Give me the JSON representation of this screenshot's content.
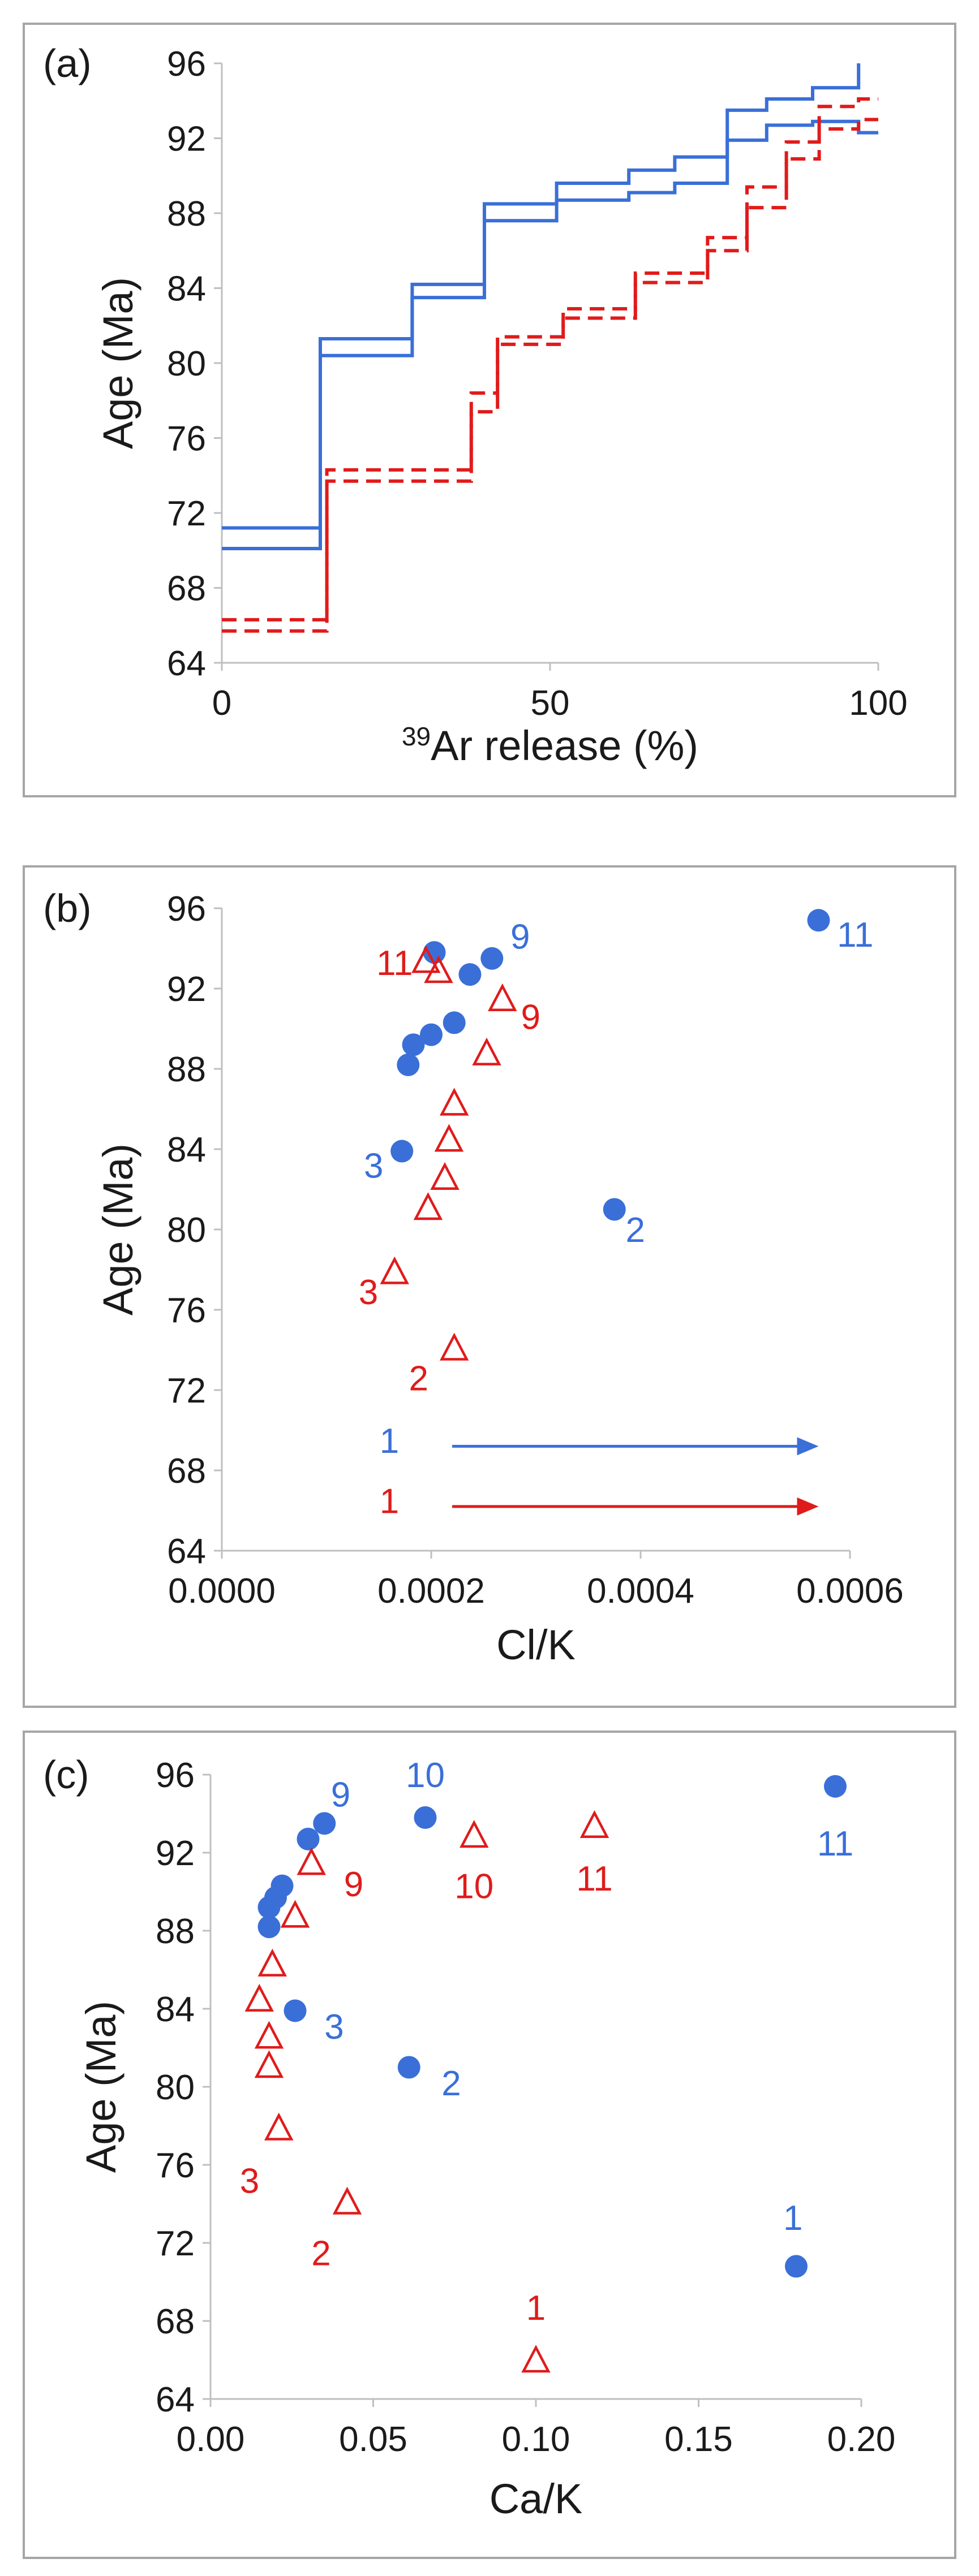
{
  "colors": {
    "blue": "#3a6fd8",
    "red": "#e01b1b",
    "axis": "#bfbfbf",
    "text": "#1a1a1a"
  },
  "chart_data": [
    {
      "type": "line",
      "panel_label": "(a)",
      "title": "",
      "xlabel": "39Ar release (%)",
      "xlabel_sup": "39",
      "xlabel_main": "Ar release (%)",
      "ylabel": "Age (Ma)",
      "xlim": [
        0,
        100
      ],
      "ylim": [
        64,
        96
      ],
      "xticks": [
        0,
        50,
        100
      ],
      "yticks": [
        64,
        68,
        72,
        76,
        80,
        84,
        88,
        92,
        96
      ],
      "xtick_labels": [
        "0",
        "50",
        "100"
      ],
      "ytick_labels": [
        "64",
        "68",
        "72",
        "76",
        "80",
        "84",
        "88",
        "92",
        "96"
      ],
      "series": [
        {
          "name": "blue-step-upper",
          "color": "blue",
          "style": "solid",
          "steps": [
            [
              0,
              15,
              71.2
            ],
            [
              15,
              29,
              81.3
            ],
            [
              29,
              40,
              84.2
            ],
            [
              40,
              51,
              88.5
            ],
            [
              51,
              62,
              89.6
            ],
            [
              62,
              69,
              90.3
            ],
            [
              69,
              77,
              91.0
            ],
            [
              77,
              83,
              93.5
            ],
            [
              83,
              90,
              94.1
            ],
            [
              90,
              97,
              94.7
            ],
            [
              97,
              97,
              96.0
            ]
          ]
        },
        {
          "name": "blue-step-lower",
          "color": "blue",
          "style": "solid",
          "steps": [
            [
              0,
              15,
              70.1
            ],
            [
              15,
              29,
              80.4
            ],
            [
              29,
              40,
              83.5
            ],
            [
              40,
              51,
              87.6
            ],
            [
              51,
              62,
              88.7
            ],
            [
              62,
              69,
              89.1
            ],
            [
              69,
              77,
              89.6
            ],
            [
              77,
              83,
              91.9
            ],
            [
              83,
              90,
              92.7
            ],
            [
              90,
              97,
              92.9
            ],
            [
              97,
              100,
              92.3
            ]
          ]
        },
        {
          "name": "red-step-upper",
          "color": "red",
          "style": "dashed",
          "steps": [
            [
              0,
              16,
              66.3
            ],
            [
              16,
              38,
              74.3
            ],
            [
              38,
              42,
              78.4
            ],
            [
              42,
              52,
              81.4
            ],
            [
              52,
              63,
              82.9
            ],
            [
              63,
              74,
              84.8
            ],
            [
              74,
              80,
              86.7
            ],
            [
              80,
              86,
              89.4
            ],
            [
              86,
              91,
              91.8
            ],
            [
              91,
              97,
              93.7
            ],
            [
              97,
              100,
              94.1
            ]
          ]
        },
        {
          "name": "red-step-lower",
          "color": "red",
          "style": "dashed",
          "steps": [
            [
              0,
              16,
              65.7
            ],
            [
              16,
              38,
              73.7
            ],
            [
              38,
              42,
              77.4
            ],
            [
              42,
              52,
              81.0
            ],
            [
              52,
              63,
              82.4
            ],
            [
              63,
              74,
              84.3
            ],
            [
              74,
              80,
              86.0
            ],
            [
              80,
              86,
              88.3
            ],
            [
              86,
              91,
              90.9
            ],
            [
              91,
              97,
              92.5
            ],
            [
              97,
              100,
              93.0
            ]
          ]
        }
      ]
    },
    {
      "type": "scatter",
      "panel_label": "(b)",
      "title": "",
      "xlabel": "Cl/K",
      "ylabel": "Age (Ma)",
      "xlim": [
        0,
        0.0006
      ],
      "ylim": [
        64,
        96
      ],
      "xticks": [
        0,
        0.0002,
        0.0004,
        0.0006
      ],
      "yticks": [
        64,
        68,
        72,
        76,
        80,
        84,
        88,
        92,
        96
      ],
      "xtick_labels": [
        "0.0000",
        "0.0002",
        "0.0004",
        "0.0006"
      ],
      "ytick_labels": [
        "64",
        "68",
        "72",
        "76",
        "80",
        "84",
        "88",
        "92",
        "96"
      ],
      "series": [
        {
          "name": "blue",
          "color": "blue",
          "marker": "circle",
          "points": [
            [
              0.000375,
              81.0
            ],
            [
              0.000172,
              83.9
            ],
            [
              0.000178,
              88.2
            ],
            [
              0.000183,
              89.2
            ],
            [
              0.0002,
              89.7
            ],
            [
              0.000222,
              90.3
            ],
            [
              0.000237,
              92.7
            ],
            [
              0.000258,
              93.5
            ],
            [
              0.000203,
              93.8
            ],
            [
              0.00057,
              95.4
            ]
          ]
        },
        {
          "name": "red",
          "color": "red",
          "marker": "triangle",
          "points": [
            [
              0.000222,
              74.1
            ],
            [
              0.000165,
              77.9
            ],
            [
              0.000197,
              81.1
            ],
            [
              0.000213,
              82.6
            ],
            [
              0.000217,
              84.5
            ],
            [
              0.000222,
              86.3
            ],
            [
              0.000253,
              88.8
            ],
            [
              0.000268,
              91.5
            ],
            [
              0.000207,
              92.9
            ],
            [
              0.000195,
              93.4
            ]
          ]
        }
      ],
      "annotations": [
        {
          "text": "2",
          "color": "blue",
          "x": 0.000395,
          "y": 80.0
        },
        {
          "text": "3",
          "color": "blue",
          "x": 0.000145,
          "y": 83.2
        },
        {
          "text": "9",
          "color": "blue",
          "x": 0.000285,
          "y": 94.6
        },
        {
          "text": "11",
          "color": "blue",
          "x": 0.000605,
          "y": 94.7
        },
        {
          "text": "11",
          "color": "red",
          "x": 0.000165,
          "y": 93.3
        },
        {
          "text": "9",
          "color": "red",
          "x": 0.000295,
          "y": 90.6
        },
        {
          "text": "3",
          "color": "red",
          "x": 0.00014,
          "y": 76.9
        },
        {
          "text": "2",
          "color": "red",
          "x": 0.000188,
          "y": 72.6
        },
        {
          "text": "1",
          "color": "blue",
          "x": 0.00016,
          "y": 69.5
        },
        {
          "text": "1",
          "color": "red",
          "x": 0.00016,
          "y": 66.5
        }
      ],
      "arrows": [
        {
          "color": "blue",
          "x1": 0.00022,
          "x2": 0.00057,
          "y": 69.2
        },
        {
          "color": "red",
          "x1": 0.00022,
          "x2": 0.00057,
          "y": 66.2
        }
      ]
    },
    {
      "type": "scatter",
      "panel_label": "(c)",
      "title": "",
      "xlabel": "Ca/K",
      "ylabel": "Age (Ma)",
      "xlim": [
        0,
        0.2
      ],
      "ylim": [
        64,
        96
      ],
      "xticks": [
        0,
        0.05,
        0.1,
        0.15,
        0.2
      ],
      "yticks": [
        64,
        68,
        72,
        76,
        80,
        84,
        88,
        92,
        96
      ],
      "xtick_labels": [
        "0.00",
        "0.05",
        "0.10",
        "0.15",
        "0.20"
      ],
      "ytick_labels": [
        "64",
        "68",
        "72",
        "76",
        "80",
        "84",
        "88",
        "92",
        "96"
      ],
      "series": [
        {
          "name": "blue",
          "color": "blue",
          "marker": "circle",
          "points": [
            [
              0.18,
              70.8
            ],
            [
              0.061,
              81.0
            ],
            [
              0.026,
              83.9
            ],
            [
              0.018,
              88.2
            ],
            [
              0.018,
              89.2
            ],
            [
              0.02,
              89.7
            ],
            [
              0.022,
              90.3
            ],
            [
              0.03,
              92.7
            ],
            [
              0.035,
              93.5
            ],
            [
              0.066,
              93.8
            ],
            [
              0.192,
              95.4
            ]
          ]
        },
        {
          "name": "red",
          "color": "red",
          "marker": "triangle",
          "points": [
            [
              0.1,
              66.0
            ],
            [
              0.042,
              74.1
            ],
            [
              0.021,
              77.9
            ],
            [
              0.018,
              81.1
            ],
            [
              0.018,
              82.6
            ],
            [
              0.015,
              84.5
            ],
            [
              0.019,
              86.3
            ],
            [
              0.026,
              88.8
            ],
            [
              0.031,
              91.5
            ],
            [
              0.081,
              92.9
            ],
            [
              0.118,
              93.4
            ]
          ]
        }
      ],
      "annotations": [
        {
          "text": "1",
          "color": "blue",
          "x": 0.179,
          "y": 73.3
        },
        {
          "text": "2",
          "color": "blue",
          "x": 0.074,
          "y": 80.2
        },
        {
          "text": "3",
          "color": "blue",
          "x": 0.038,
          "y": 83.1
        },
        {
          "text": "9",
          "color": "blue",
          "x": 0.04,
          "y": 95.0
        },
        {
          "text": "10",
          "color": "blue",
          "x": 0.066,
          "y": 96.0
        },
        {
          "text": "11",
          "color": "blue",
          "x": 0.192,
          "y": 92.5
        },
        {
          "text": "1",
          "color": "red",
          "x": 0.1,
          "y": 68.7
        },
        {
          "text": "2",
          "color": "red",
          "x": 0.034,
          "y": 71.5
        },
        {
          "text": "3",
          "color": "red",
          "x": 0.012,
          "y": 75.2
        },
        {
          "text": "9",
          "color": "red",
          "x": 0.044,
          "y": 90.4
        },
        {
          "text": "10",
          "color": "red",
          "x": 0.081,
          "y": 90.3
        },
        {
          "text": "11",
          "color": "red",
          "x": 0.118,
          "y": 90.7
        }
      ]
    }
  ]
}
